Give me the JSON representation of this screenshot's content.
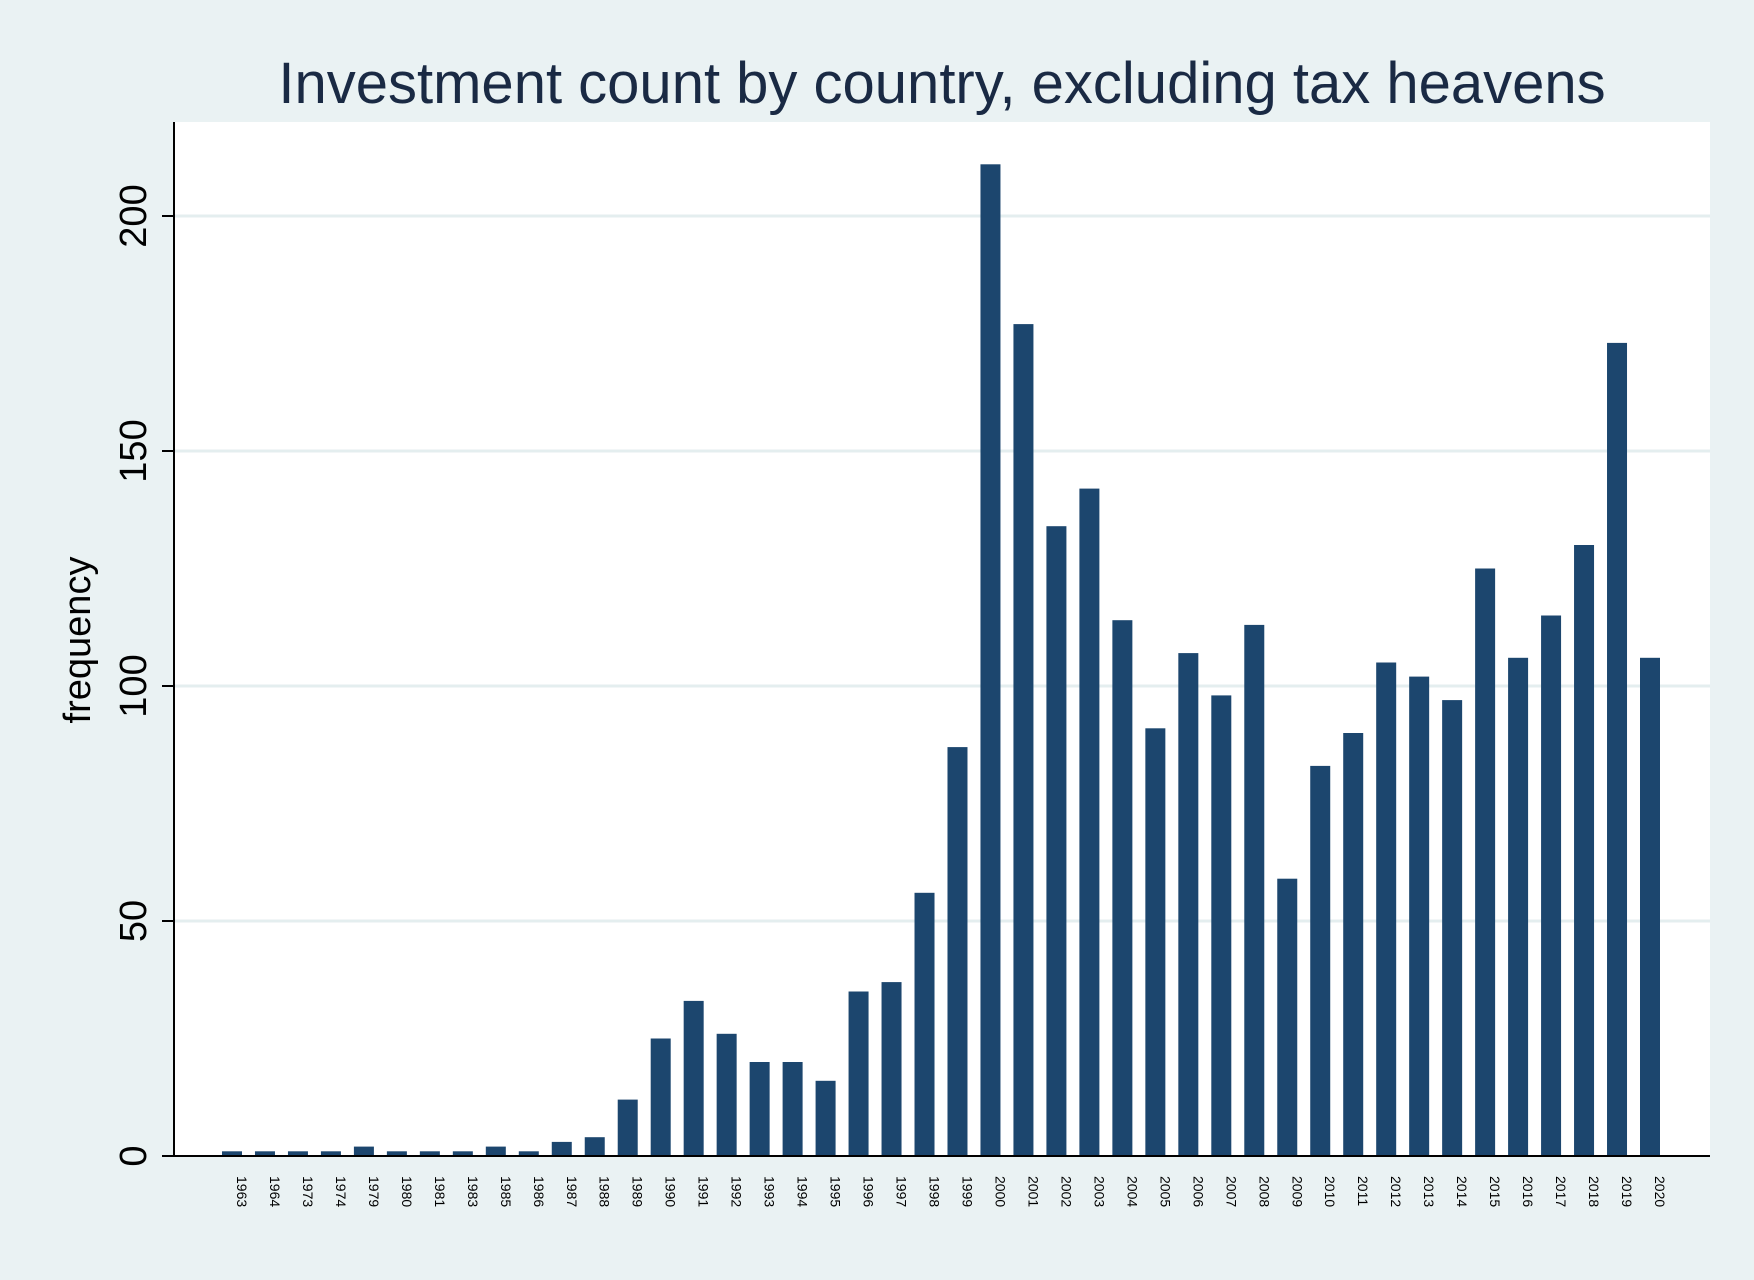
{
  "chart_data": {
    "type": "bar",
    "title": "Investment count by country, excluding tax heavens",
    "xlabel": "",
    "ylabel": "frequency",
    "ylim": [
      0,
      220
    ],
    "yticks": [
      0,
      50,
      100,
      150,
      200
    ],
    "grid": true,
    "legend": "none",
    "colors": {
      "bar": "#1c466e",
      "background": "#eaf2f3",
      "plot_bg": "#ffffff",
      "grid": "#e4eeef",
      "text": "#1a2a44"
    },
    "categories": [
      "1963",
      "1964",
      "1973",
      "1974",
      "1979",
      "1980",
      "1981",
      "1983",
      "1985",
      "1986",
      "1987",
      "1988",
      "1989",
      "1990",
      "1991",
      "1992",
      "1993",
      "1994",
      "1995",
      "1996",
      "1997",
      "1998",
      "1999",
      "2000",
      "2001",
      "2002",
      "2003",
      "2004",
      "2005",
      "2006",
      "2007",
      "2008",
      "2009",
      "2010",
      "2011",
      "2012",
      "2013",
      "2014",
      "2015",
      "2016",
      "2017",
      "2018",
      "2019",
      "2020"
    ],
    "values": [
      1,
      1,
      1,
      1,
      2,
      1,
      1,
      1,
      2,
      1,
      3,
      4,
      12,
      25,
      33,
      26,
      20,
      20,
      16,
      35,
      37,
      56,
      87,
      211,
      177,
      134,
      142,
      114,
      91,
      107,
      98,
      113,
      59,
      83,
      90,
      105,
      102,
      97,
      125,
      106,
      115,
      130,
      173,
      106
    ]
  }
}
